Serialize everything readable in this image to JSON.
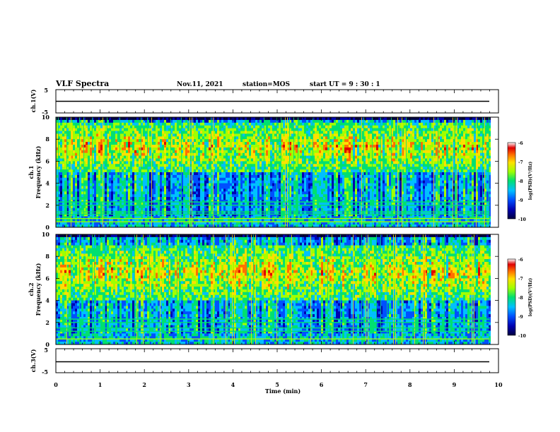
{
  "header": {
    "title": "VLF Spectra",
    "date": "Nov.11, 2021",
    "station": "station=MOS",
    "start": "start UT = 9 : 30 : 1"
  },
  "colors": {
    "spectrum_scale": [
      "#000040",
      "#0000b0",
      "#0050ff",
      "#00c0ff",
      "#00e070",
      "#a0ff00",
      "#ffe000",
      "#ff7000",
      "#e00000",
      "#ffffff"
    ]
  },
  "chart_data": [
    {
      "type": "line",
      "panel": "ch1-waveform",
      "ylabel": "ch.1(V)",
      "ylim": [
        -5,
        5
      ],
      "yticks": [
        "5",
        "-5"
      ],
      "xlim": [
        0,
        10
      ],
      "series": [
        {
          "x": [
            0,
            9.8
          ],
          "y": [
            0,
            0
          ]
        }
      ]
    },
    {
      "type": "heatmap",
      "panel": "ch1-spectrogram",
      "ylabel": "ch.1",
      "ylabel2": "Frequency (kHz)",
      "ylim": [
        0,
        10
      ],
      "yticks": [
        "0",
        "2",
        "4",
        "6",
        "8",
        "10"
      ],
      "xlim": [
        0,
        10
      ],
      "data_end_min": 9.8,
      "colorbar": {
        "label": "log(PSD)(V²/Hz)",
        "range": [
          -10,
          -6
        ],
        "ticks": [
          "-6",
          "-7",
          "-8",
          "-9",
          "-10"
        ]
      },
      "hiss_band_khz": [
        5,
        9.5
      ],
      "emission_lines_khz": [
        0.5,
        0.8,
        1.2,
        1.4,
        2.0,
        2.3
      ]
    },
    {
      "type": "heatmap",
      "panel": "ch2-spectrogram",
      "ylabel": "ch.2",
      "ylabel2": "Frequency (kHz)",
      "ylim": [
        0,
        10
      ],
      "yticks": [
        "0",
        "2",
        "4",
        "6",
        "8",
        "10"
      ],
      "xlim": [
        0,
        10
      ],
      "data_end_min": 9.8,
      "colorbar": {
        "label": "log(PSD)(V²/Hz)",
        "range": [
          -10,
          -6
        ],
        "ticks": [
          "-6",
          "-7",
          "-8",
          "-9",
          "-10"
        ]
      },
      "hiss_band_khz": [
        4,
        9
      ],
      "emission_lines_khz": [
        0.5,
        1.2,
        1.5,
        2.0,
        2.3
      ]
    },
    {
      "type": "line",
      "panel": "ch3-waveform",
      "ylabel": "ch.3(V)",
      "ylim": [
        -5,
        5
      ],
      "yticks": [
        "5",
        "-5"
      ],
      "xlim": [
        0,
        10
      ],
      "series": [
        {
          "x": [
            0,
            9.8
          ],
          "y": [
            0,
            0
          ]
        }
      ]
    }
  ],
  "xaxis": {
    "label": "Time (min)",
    "ticks": [
      "0",
      "1",
      "2",
      "3",
      "4",
      "5",
      "6",
      "7",
      "8",
      "9",
      "10"
    ]
  }
}
